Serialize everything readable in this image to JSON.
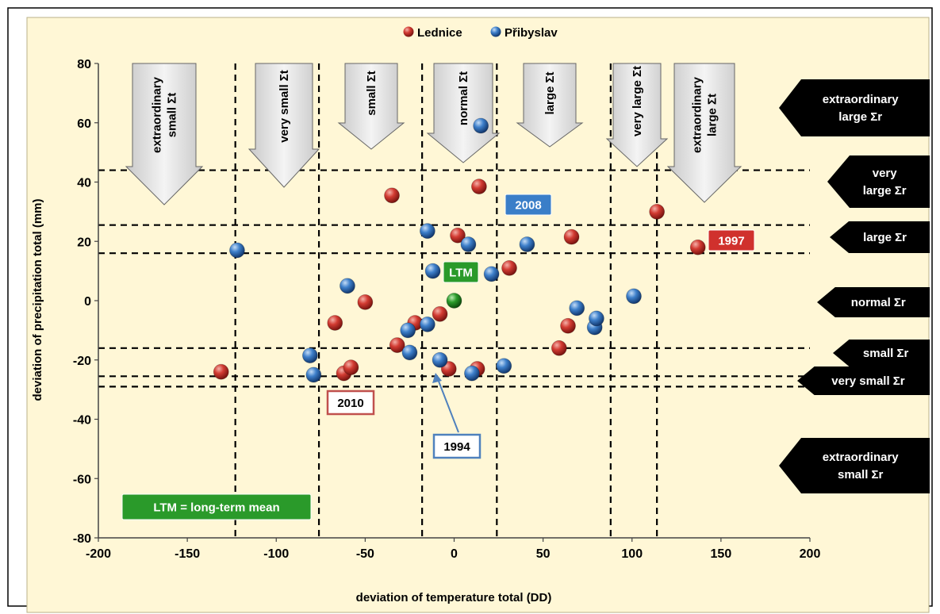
{
  "chart_data": {
    "type": "scatter",
    "xlabel": "deviation of temperature total (DD)",
    "ylabel": "deviation of precipitation total (mm)",
    "xlim": [
      -200,
      200
    ],
    "ylim": [
      -80,
      80
    ],
    "xticks": [
      -200,
      -150,
      -100,
      -50,
      0,
      50,
      100,
      150,
      200
    ],
    "yticks": [
      -80,
      -60,
      -40,
      -20,
      0,
      20,
      40,
      60,
      80
    ],
    "legend_position": "top-center",
    "series": [
      {
        "name": "Lednice",
        "color": "#d0312d",
        "points": [
          [
            -131,
            -24
          ],
          [
            -67,
            -7.5
          ],
          [
            -62,
            -24.5
          ],
          [
            -58,
            -22.5
          ],
          [
            -50,
            -0.5
          ],
          [
            -35,
            35.5
          ],
          [
            -32,
            -15
          ],
          [
            -22,
            -7.5
          ],
          [
            -8,
            -4.5
          ],
          [
            -3,
            -23
          ],
          [
            2,
            22
          ],
          [
            14,
            38.5
          ],
          [
            13,
            -23
          ],
          [
            31,
            11
          ],
          [
            59,
            -16
          ],
          [
            64,
            -8.5
          ],
          [
            66,
            21.5
          ],
          [
            114,
            30
          ],
          [
            137,
            18
          ]
        ]
      },
      {
        "name": "Přibyslav",
        "color": "#3a7ec8",
        "points": [
          [
            -122,
            17
          ],
          [
            -81,
            -18.5
          ],
          [
            -79,
            -25
          ],
          [
            -60,
            5
          ],
          [
            -26,
            -10
          ],
          [
            -25,
            -17.5
          ],
          [
            -15,
            -8
          ],
          [
            -15,
            23.5
          ],
          [
            -12,
            10
          ],
          [
            -8,
            -20
          ],
          [
            8,
            19
          ],
          [
            10,
            -24.5
          ],
          [
            15,
            59
          ],
          [
            21,
            9
          ],
          [
            28,
            -22
          ],
          [
            41,
            19
          ],
          [
            69,
            -2.5
          ],
          [
            79,
            -9
          ],
          [
            80,
            -6
          ],
          [
            101,
            1.5
          ]
        ]
      },
      {
        "name": "LTM",
        "color": "#2a9a2a",
        "points": [
          [
            0,
            0
          ]
        ]
      }
    ],
    "x_boundaries": [
      -123,
      -76,
      -18,
      24,
      88,
      114
    ],
    "y_boundaries": [
      44,
      25.5,
      16,
      -16,
      -25.5,
      -29
    ],
    "temperature_categories": [
      {
        "label": "extraordinary small Σt",
        "lines": [
          "extraordinary",
          "small Σt"
        ]
      },
      {
        "label": "very small Σt",
        "lines": [
          "very small Σt"
        ]
      },
      {
        "label": "small Σt",
        "lines": [
          "small Σt"
        ]
      },
      {
        "label": "normal Σt",
        "lines": [
          "normal Σt"
        ]
      },
      {
        "label": "large Σt",
        "lines": [
          "large Σt"
        ]
      },
      {
        "label": "very large Σt",
        "lines": [
          "very large Σt"
        ]
      },
      {
        "label": "extraordinary large Σt",
        "lines": [
          "extraordinary",
          "large Σt"
        ]
      }
    ],
    "precipitation_categories": [
      {
        "label": "extraordinary large Σr",
        "lines": [
          "extraordinary",
          "large Σr"
        ]
      },
      {
        "label": "very large Σr",
        "lines": [
          "very",
          "large Σr"
        ]
      },
      {
        "label": "large Σr",
        "lines": [
          "large Σr"
        ]
      },
      {
        "label": "normal Σr",
        "lines": [
          "normal Σr"
        ]
      },
      {
        "label": "small Σr",
        "lines": [
          "small Σr"
        ]
      },
      {
        "label": "very small Σr",
        "lines": [
          "very small Σr"
        ]
      },
      {
        "label": "extraordinary small Σr",
        "lines": [
          "extraordinary",
          "small Σr"
        ]
      }
    ],
    "annotations": [
      {
        "text": "2008",
        "style": "filled",
        "color": "#3a7ec8"
      },
      {
        "text": "1997",
        "style": "filled",
        "color": "#d0312d"
      },
      {
        "text": "LTM",
        "style": "filled",
        "color": "#2a9a2a"
      },
      {
        "text": "2010",
        "style": "outline",
        "color": "#c0504d"
      },
      {
        "text": "1994",
        "style": "outline",
        "color": "#4f81bd"
      },
      {
        "text": "LTM = long-term mean",
        "style": "filled",
        "color": "#2a9a2a"
      }
    ],
    "colors": {
      "plot_background": "#fff7d6",
      "panel_background": "#fff7d6"
    }
  }
}
